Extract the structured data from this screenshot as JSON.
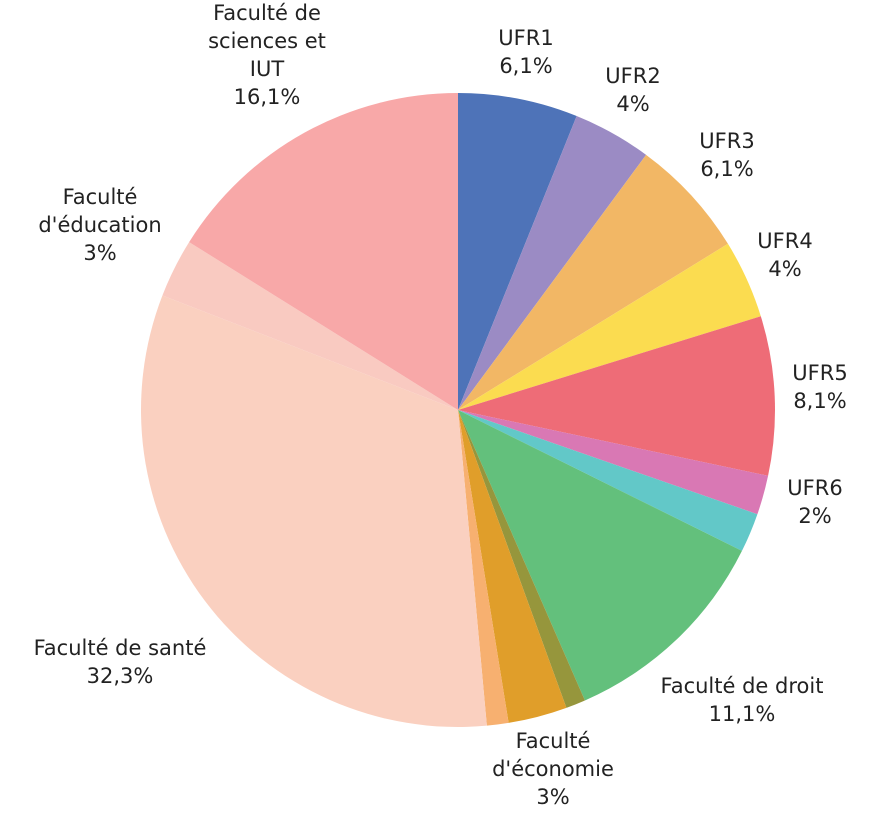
{
  "chart_data": {
    "type": "pie",
    "categories": [
      "UFR1",
      "UFR2",
      "UFR3",
      "UFR4",
      "UFR5",
      null,
      "UFR6",
      "Faculté de droit",
      null,
      "Faculté\nd'économie",
      null,
      "Faculté de santé",
      "Faculté\nd'éducation",
      "Faculté de\nsciences et\nIUT"
    ],
    "values": [
      6.1,
      4,
      6.1,
      4,
      8.1,
      2,
      2,
      11.1,
      1,
      3,
      1.1,
      32.3,
      3,
      16.1
    ],
    "value_labels": [
      "6,1%",
      "4%",
      "6,1%",
      "4%",
      "8,1%",
      null,
      "2%",
      "11,1%",
      null,
      "3%",
      null,
      "32,3%",
      "3%",
      "16,1%"
    ],
    "colors": [
      "#4e73b8",
      "#9b8bc4",
      "#f2b765",
      "#fbdc50",
      "#ee6c77",
      "#d978b4",
      "#62c8c8",
      "#63c07c",
      "#96963c",
      "#e09e2a",
      "#f7b070",
      "#fad0c0",
      "#f9cac1",
      "#f8a8a8"
    ]
  }
}
